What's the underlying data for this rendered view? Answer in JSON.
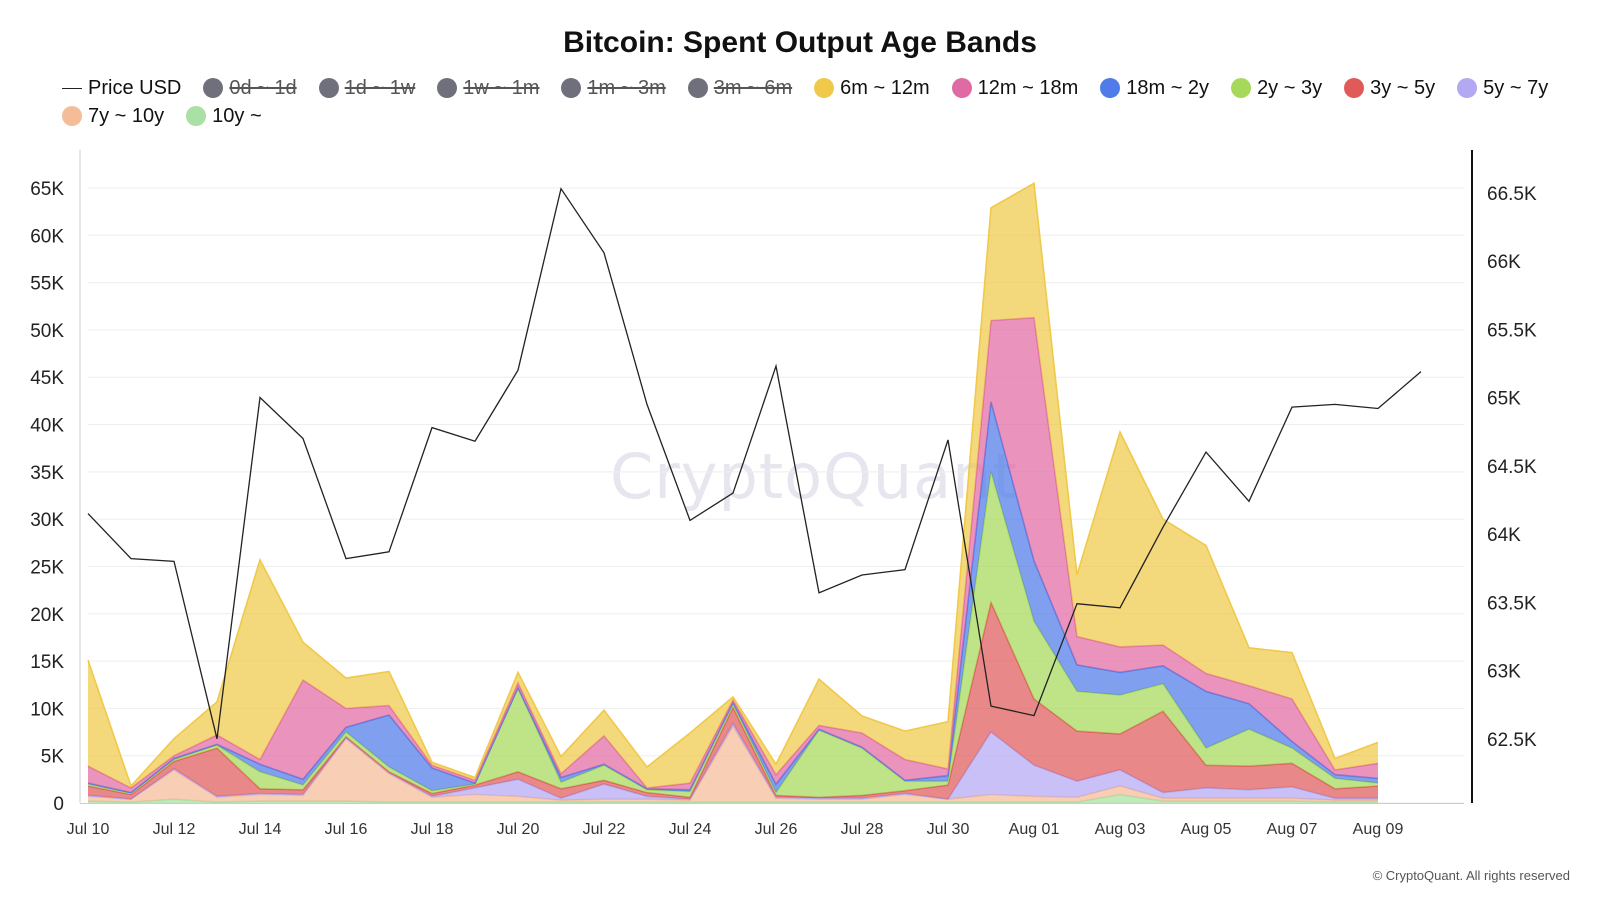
{
  "chart_data": {
    "type": "area",
    "title": "Bitcoin: Spent Output Age Bands",
    "x": [
      "Jul 10",
      "Jul 11",
      "Jul 12",
      "Jul 13",
      "Jul 14",
      "Jul 15",
      "Jul 16",
      "Jul 17",
      "Jul 18",
      "Jul 19",
      "Jul 20",
      "Jul 21",
      "Jul 22",
      "Jul 23",
      "Jul 24",
      "Jul 25",
      "Jul 26",
      "Jul 27",
      "Jul 28",
      "Jul 29",
      "Jul 30",
      "Jul 31",
      "Aug 01",
      "Aug 02",
      "Aug 03",
      "Aug 04",
      "Aug 05",
      "Aug 06",
      "Aug 07",
      "Aug 08",
      "Aug 09",
      "Aug 10"
    ],
    "x_tick_labels": [
      "Jul 10",
      "Jul 12",
      "Jul 14",
      "Jul 16",
      "Jul 18",
      "Jul 20",
      "Jul 22",
      "Jul 24",
      "Jul 26",
      "Jul 28",
      "Jul 30",
      "Aug 01",
      "Aug 03",
      "Aug 05",
      "Aug 07",
      "Aug 09"
    ],
    "y_left": {
      "min": 0,
      "max": 65000,
      "ticks": [
        0,
        5000,
        10000,
        15000,
        20000,
        25000,
        30000,
        35000,
        40000,
        45000,
        50000,
        55000,
        60000,
        65000
      ],
      "tick_labels": [
        "0",
        "5K",
        "10K",
        "15K",
        "20K",
        "25K",
        "30K",
        "35K",
        "40K",
        "45K",
        "50K",
        "55K",
        "60K",
        "65K"
      ]
    },
    "y_right": {
      "min": 62030,
      "max": 66740,
      "ticks": [
        62500,
        63000,
        63500,
        64000,
        64500,
        65000,
        65500,
        66000,
        66500
      ],
      "tick_labels": [
        "62.5K",
        "63K",
        "63.5K",
        "64K",
        "64.5K",
        "65K",
        "65.5K",
        "66K",
        "66.5K"
      ]
    },
    "grid": true,
    "stacked": true,
    "legend": [
      {
        "name": "Price USD",
        "kind": "line",
        "color": "#222222",
        "enabled": true
      },
      {
        "name": "0d ~ 1d",
        "kind": "dot",
        "color": "#70707c",
        "enabled": false
      },
      {
        "name": "1d ~ 1w",
        "kind": "dot",
        "color": "#70707c",
        "enabled": false
      },
      {
        "name": "1w ~ 1m",
        "kind": "dot",
        "color": "#70707c",
        "enabled": false
      },
      {
        "name": "1m ~ 3m",
        "kind": "dot",
        "color": "#70707c",
        "enabled": false
      },
      {
        "name": "3m ~ 6m",
        "kind": "dot",
        "color": "#70707c",
        "enabled": false
      },
      {
        "name": "6m ~ 12m",
        "kind": "dot",
        "color": "#f0c94a",
        "enabled": true
      },
      {
        "name": "12m ~ 18m",
        "kind": "dot",
        "color": "#e06aa4",
        "enabled": true
      },
      {
        "name": "18m ~ 2y",
        "kind": "dot",
        "color": "#4f7ce9",
        "enabled": true
      },
      {
        "name": "2y ~ 3y",
        "kind": "dot",
        "color": "#a6d95a",
        "enabled": true
      },
      {
        "name": "3y ~ 5y",
        "kind": "dot",
        "color": "#e05a5a",
        "enabled": true
      },
      {
        "name": "5y ~ 7y",
        "kind": "dot",
        "color": "#b3a8f2",
        "enabled": true
      },
      {
        "name": "7y ~ 10y",
        "kind": "dot",
        "color": "#f5bc98",
        "enabled": true
      },
      {
        "name": "10y ~",
        "kind": "dot",
        "color": "#a9e0a4",
        "enabled": true
      }
    ],
    "price": [
      64150,
      63820,
      63800,
      62500,
      65000,
      64700,
      63820,
      63870,
      64780,
      64680,
      65200,
      66530,
      66060,
      64950,
      64100,
      64300,
      65230,
      63570,
      63700,
      63740,
      64690,
      62740,
      62670,
      63490,
      63460,
      64050,
      64600,
      64240,
      64930,
      64950,
      64920,
      65190
    ],
    "series": [
      {
        "name": "10y ~",
        "color": "#a9e0a4",
        "values": [
          200,
          100,
          400,
          100,
          200,
          200,
          200,
          100,
          100,
          100,
          100,
          100,
          100,
          100,
          100,
          100,
          100,
          100,
          100,
          100,
          100,
          100,
          100,
          100,
          900,
          200,
          200,
          200,
          200,
          100,
          100,
          null
        ]
      },
      {
        "name": "7y ~ 10y",
        "color": "#f5bc98",
        "values": [
          500,
          300,
          3100,
          500,
          700,
          600,
          6600,
          3000,
          500,
          800,
          600,
          200,
          300,
          300,
          200,
          8000,
          400,
          300,
          300,
          800,
          300,
          800,
          600,
          500,
          900,
          300,
          300,
          300,
          300,
          200,
          200,
          null
        ]
      },
      {
        "name": "5y ~ 7y",
        "color": "#b3a8f2",
        "values": [
          100,
          0,
          100,
          100,
          100,
          100,
          100,
          100,
          100,
          700,
          1800,
          200,
          1600,
          300,
          100,
          300,
          100,
          100,
          100,
          100,
          0,
          6600,
          3300,
          1700,
          1700,
          600,
          1100,
          900,
          1200,
          200,
          200,
          null
        ]
      },
      {
        "name": "3y ~ 5y",
        "color": "#e05a5a",
        "values": [
          1000,
          500,
          800,
          5100,
          500,
          500,
          100,
          100,
          300,
          300,
          800,
          1000,
          400,
          400,
          200,
          1700,
          200,
          100,
          300,
          300,
          1500,
          13700,
          7000,
          5300,
          3800,
          8600,
          2400,
          2500,
          2500,
          1000,
          1300,
          null
        ]
      },
      {
        "name": "2y ~ 3y",
        "color": "#a6d95a",
        "values": [
          200,
          100,
          200,
          300,
          1800,
          500,
          500,
          500,
          300,
          100,
          8800,
          700,
          1600,
          300,
          600,
          400,
          300,
          7100,
          5000,
          1000,
          400,
          13800,
          8200,
          4200,
          4100,
          2900,
          1800,
          3900,
          1600,
          1100,
          300,
          null
        ]
      },
      {
        "name": "18m ~ 2y",
        "color": "#4f7ce9",
        "values": [
          100,
          100,
          100,
          100,
          800,
          600,
          500,
          5500,
          2400,
          100,
          100,
          500,
          100,
          100,
          200,
          100,
          900,
          100,
          100,
          100,
          600,
          7400,
          6400,
          2800,
          2400,
          1900,
          6000,
          2700,
          700,
          400,
          500,
          null
        ]
      },
      {
        "name": "12m ~ 18m",
        "color": "#e06aa4",
        "values": [
          1800,
          500,
          300,
          1000,
          500,
          10500,
          2000,
          1000,
          300,
          300,
          500,
          400,
          3000,
          100,
          700,
          300,
          1000,
          400,
          1500,
          2200,
          700,
          8600,
          25700,
          3000,
          2700,
          2200,
          1900,
          1900,
          4500,
          500,
          1600,
          null
        ]
      },
      {
        "name": "6m ~ 12m",
        "color": "#f0c94a",
        "values": [
          11200,
          200,
          1800,
          3500,
          21100,
          4000,
          3200,
          3600,
          300,
          300,
          1100,
          1800,
          2700,
          2200,
          5300,
          300,
          1100,
          4900,
          1800,
          3000,
          5000,
          11900,
          14200,
          6500,
          22700,
          13300,
          13500,
          4000,
          4900,
          1200,
          2200,
          null
        ]
      }
    ],
    "watermark": "CryptoQuant",
    "credit": "© CryptoQuant. All rights reserved"
  }
}
